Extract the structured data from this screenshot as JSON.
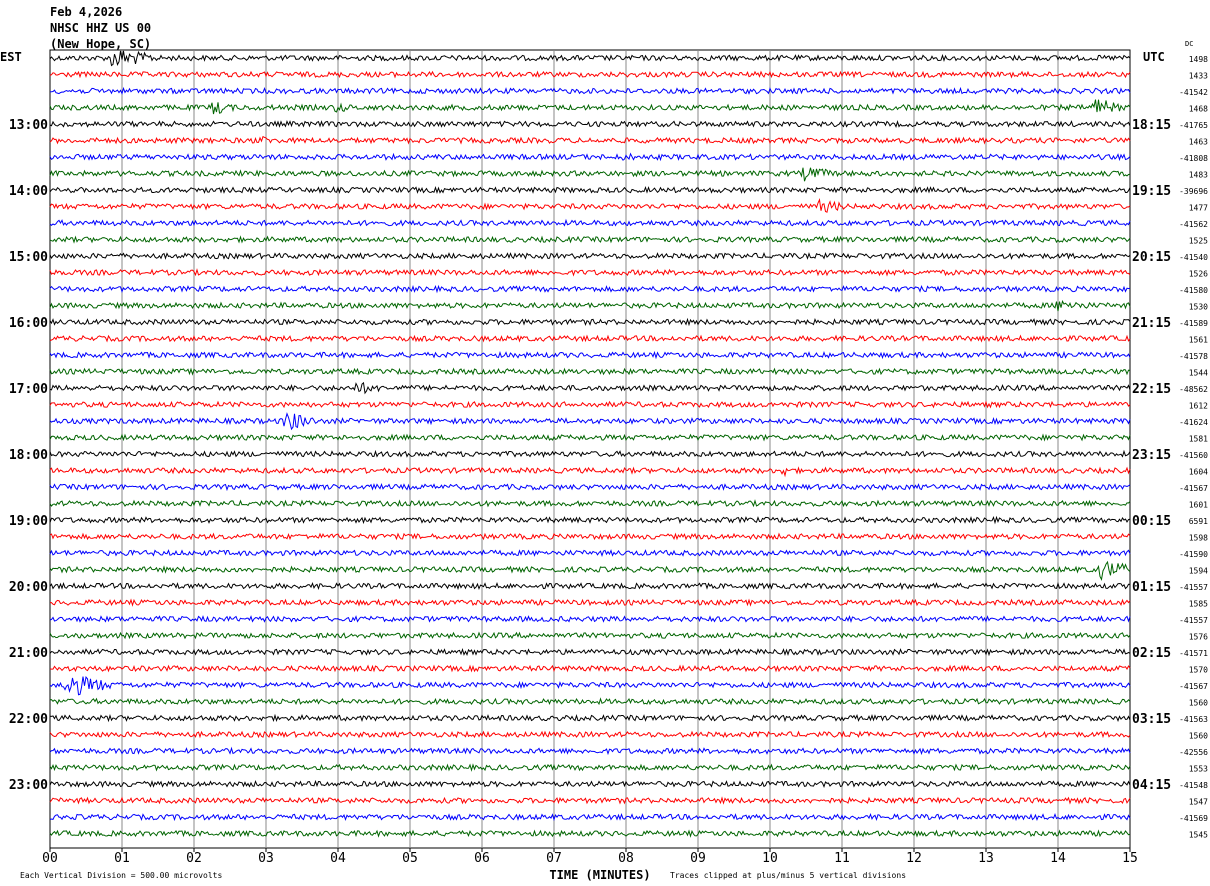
{
  "header": {
    "date": "Feb 4,2026",
    "station": "NHSC HHZ US 00",
    "location": "(New Hope, SC)"
  },
  "chart_data": {
    "type": "line",
    "title": "NHSC HHZ US 00 helicorder",
    "left_tz": "EST",
    "right_tz": "UTC",
    "dc_label": "DC",
    "xlabel": "TIME (MINUTES)",
    "x_ticks": [
      "00",
      "01",
      "02",
      "03",
      "04",
      "05",
      "06",
      "07",
      "08",
      "09",
      "10",
      "11",
      "12",
      "13",
      "14",
      "15"
    ],
    "xlim": [
      0,
      15
    ],
    "rows_per_hour": 4,
    "left_labels": [
      "13:00",
      "14:00",
      "15:00",
      "16:00",
      "17:00",
      "18:00",
      "19:00",
      "20:00",
      "21:00",
      "22:00",
      "23:00"
    ],
    "right_labels": [
      "18:15",
      "19:15",
      "20:15",
      "21:15",
      "22:15",
      "23:15",
      "00:15",
      "01:15",
      "02:15",
      "03:15",
      "04:15"
    ],
    "label_every_rows": 4,
    "trace_colors": [
      "#000000",
      "#ff0000",
      "#0000ff",
      "#006400"
    ],
    "dc_values": [
      "1498",
      "1433",
      "-41542",
      "1468",
      "-41765",
      "1463",
      "-41808",
      "1483",
      "-39696",
      "1477",
      "-41562",
      "1525",
      "-41540",
      "1526",
      "-41580",
      "1530",
      "-41589",
      "1561",
      "-41578",
      "1544",
      "-48562",
      "1612",
      "-41624",
      "1581",
      "-41560",
      "1604",
      "-41567",
      "1601",
      "6591",
      "1598",
      "-41590",
      "1594",
      "-41557",
      "1585",
      "-41557",
      "1576",
      "-41571",
      "1570",
      "-41567",
      "1560",
      "-41563",
      "1560",
      "-42556",
      "1553",
      "-41548",
      "1547",
      "-41569",
      "1545"
    ],
    "events": [
      {
        "row": 0,
        "minute": 0.9,
        "amp": 10,
        "dur": 0.6
      },
      {
        "row": 3,
        "minute": 2.3,
        "amp": 7,
        "dur": 0.3
      },
      {
        "row": 3,
        "minute": 4.0,
        "amp": 5,
        "dur": 0.3
      },
      {
        "row": 3,
        "minute": 14.5,
        "amp": 10,
        "dur": 0.4
      },
      {
        "row": 5,
        "minute": 2.9,
        "amp": 5,
        "dur": 0.3
      },
      {
        "row": 6,
        "minute": 8.0,
        "amp": 4,
        "dur": 0.3
      },
      {
        "row": 7,
        "minute": 10.5,
        "amp": 8,
        "dur": 0.4
      },
      {
        "row": 9,
        "minute": 10.7,
        "amp": 7,
        "dur": 0.4
      },
      {
        "row": 15,
        "minute": 14.0,
        "amp": 6,
        "dur": 0.6
      },
      {
        "row": 20,
        "minute": 4.3,
        "amp": 6,
        "dur": 0.4
      },
      {
        "row": 22,
        "minute": 3.3,
        "amp": 10,
        "dur": 0.4
      },
      {
        "row": 25,
        "minute": 10.2,
        "amp": 6,
        "dur": 0.1
      },
      {
        "row": 31,
        "minute": 14.6,
        "amp": 10,
        "dur": 0.5
      },
      {
        "row": 38,
        "minute": 0.25,
        "amp": 12,
        "dur": 0.6
      }
    ],
    "footer_left": "Each Vertical Division =  500.00 microvolts",
    "footer_right": "Traces clipped at plus/minus 5 vertical divisions"
  }
}
